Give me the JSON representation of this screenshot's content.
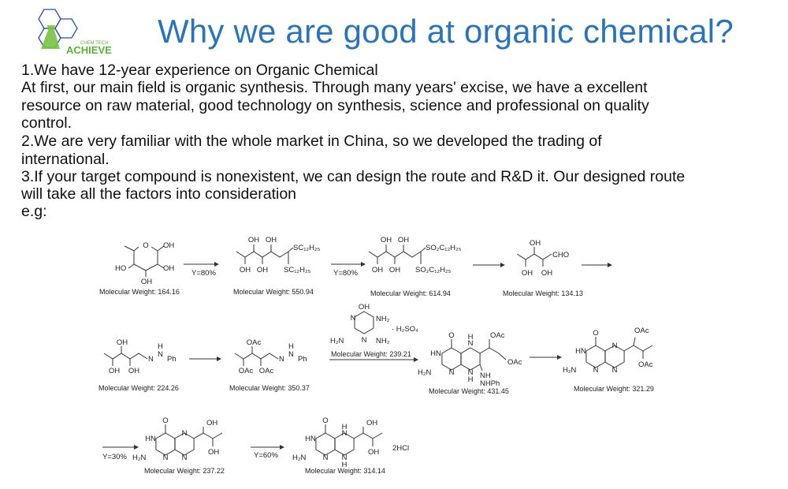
{
  "logo": {
    "brand": "ACHIEVE",
    "tagline": "CHEM TECH",
    "colors": {
      "hex": "#2F4F9F",
      "flask": "#7AC143"
    }
  },
  "title": "Why we are good at organic chemical?",
  "body_lines": [
    "1.We have 12-year experience on Organic Chemical",
    "At first, our main field is organic synthesis. Through many years' excise, we have a excellent",
    "resource on raw material, good technology on synthesis, science and professional on quality",
    "control.",
    "2.We are very familiar with the whole market in China, so we developed the trading of",
    "international.",
    "3.If your target compound is nonexistent, we can design the route and R&D it. Our designed route",
    "will take all the factors into consideration",
    "e.g:"
  ],
  "scheme": {
    "yields": [
      "Y=80%",
      "Y=80%",
      "Y=30%",
      "Y=60%"
    ],
    "molecular_weights": [
      "Molecular Weight: 164.16",
      "Molecular Weight: 550.94",
      "Molecular Weight: 614.94",
      "Molecular Weight: 134.13",
      "Molecular Weight: 224.26",
      "Molecular Weight: 350.37",
      "Molecular Weight: 239.21",
      "Molecular Weight: 431.45",
      "Molecular Weight: 321.29",
      "Molecular Weight: 237.22",
      "Molecular Weight: 314.14"
    ],
    "m1": [
      "O",
      "OH",
      "OH",
      "OH",
      "HO"
    ],
    "m2": [
      "OH",
      "OH",
      "OH",
      "OH",
      "SC₁₂H₂₅",
      "SC₁₂H₂₅"
    ],
    "m3": [
      "OH",
      "OH",
      "OH",
      "OH",
      "SO₂C₁₂H₂₅",
      "SO₂C₁₂H₂₅"
    ],
    "m4": [
      "OH",
      "OH",
      "OH",
      "CHO"
    ],
    "m5": [
      "OH",
      "OH",
      "OH",
      "N",
      "N",
      "H",
      "Ph"
    ],
    "m6": [
      "OAc",
      "OAc",
      "OAc",
      "N",
      "N",
      "H",
      "Ph"
    ],
    "reagent": [
      "OH",
      "NH₂",
      "N",
      "N",
      "H₂N",
      "NH₂",
      "· H₂SO₄"
    ],
    "m7": [
      "O",
      "HN",
      "H₂N",
      "N",
      "N",
      "H",
      "N",
      "H",
      "OAc",
      "OAc",
      "NH",
      "NHPh"
    ],
    "m8": [
      "O",
      "HN",
      "H₂N",
      "N",
      "N",
      "N",
      "OAc",
      "OAc"
    ],
    "m9": [
      "O",
      "HN",
      "H₂N",
      "N",
      "N",
      "N",
      "OH",
      "OH"
    ],
    "m10": [
      "O",
      "HN",
      "H₂N",
      "N",
      "N",
      "H",
      "N",
      "H",
      "OH",
      "OH",
      "2HCl"
    ]
  }
}
